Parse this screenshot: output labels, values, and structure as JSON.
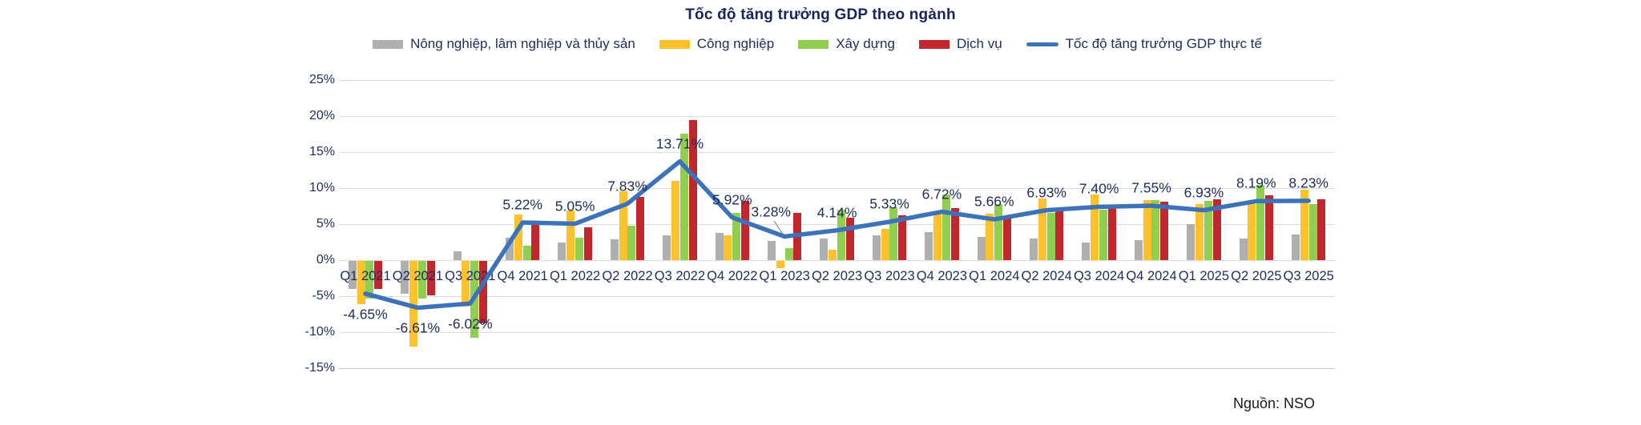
{
  "title": "Tốc độ tăng trưởng GDP theo ngành",
  "source_note": "Nguồn: NSO",
  "colors": {
    "agriculture": "#AFAFAF",
    "industry": "#FDC12C",
    "construction": "#8FCE4F",
    "services": "#C1272D",
    "gdp_line": "#3C72B9",
    "text_navy": "#1F2B5B",
    "grid": "#DCDCDC"
  },
  "chart_data": {
    "type": "bar",
    "subtype": "grouped-bars-with-line",
    "title": "Tốc độ tăng trưởng GDP theo ngành",
    "xlabel": "",
    "ylabel": "",
    "ylim": [
      -15,
      25
    ],
    "grid": true,
    "legend_position": "top",
    "categories": [
      "Q1 2021",
      "Q2 2021",
      "Q3 2021",
      "Q4 2021",
      "Q1 2022",
      "Q2 2022",
      "Q3 2022",
      "Q4 2022",
      "Q1 2023",
      "Q2 2023",
      "Q3 2023",
      "Q4 2023",
      "Q1 2024",
      "Q2 2024",
      "Q3 2024",
      "Q4 2024",
      "Q1 2025",
      "Q2 2025",
      "Q3 2025"
    ],
    "y_axis": {
      "ticks": [
        "25%",
        "20%",
        "15%",
        "10%",
        "5%",
        "0%",
        "-5%",
        "-10%",
        "-15%"
      ],
      "tick_values": [
        25,
        20,
        15,
        10,
        5,
        0,
        -5,
        -10,
        -15
      ]
    },
    "series": [
      {
        "name": "Nông nghiệp, lâm nghiệp và thủy sản",
        "kind": "bar",
        "color": "#AFAFAF",
        "values": [
          -3.9,
          -4.6,
          1.2,
          3.1,
          2.4,
          2.9,
          3.5,
          3.8,
          2.7,
          3.0,
          3.5,
          3.9,
          3.2,
          3.0,
          2.4,
          2.8,
          5.0,
          3.0,
          3.6
        ]
      },
      {
        "name": "Công nghiệp",
        "kind": "bar",
        "color": "#FDC12C",
        "values": [
          -6.0,
          -11.9,
          -6.3,
          6.3,
          6.9,
          9.6,
          11.0,
          3.4,
          -1.0,
          1.4,
          4.3,
          6.5,
          6.4,
          8.6,
          9.1,
          8.3,
          7.8,
          8.2,
          9.8
        ]
      },
      {
        "name": "Xây dựng",
        "kind": "bar",
        "color": "#8FCE4F",
        "values": [
          -5.2,
          -5.2,
          -10.7,
          2.0,
          3.1,
          4.8,
          17.6,
          6.6,
          1.7,
          7.0,
          7.3,
          9.1,
          7.8,
          6.6,
          7.0,
          8.3,
          8.2,
          10.4,
          7.8
        ]
      },
      {
        "name": "Dịch vụ",
        "kind": "bar",
        "color": "#C1272D",
        "values": [
          -3.9,
          -4.8,
          -8.7,
          5.3,
          4.6,
          8.8,
          19.4,
          8.2,
          6.6,
          5.9,
          6.2,
          7.2,
          5.8,
          6.8,
          7.2,
          8.1,
          8.5,
          9.0,
          8.4
        ]
      },
      {
        "name": "Tốc độ tăng trưởng GDP thực tế",
        "kind": "line",
        "color": "#3C72B9",
        "values": [
          -4.65,
          -6.61,
          -6.02,
          5.22,
          5.05,
          7.83,
          13.71,
          5.92,
          3.28,
          4.14,
          5.33,
          6.72,
          5.66,
          6.93,
          7.4,
          7.55,
          6.93,
          8.19,
          8.23
        ],
        "point_labels": [
          "-4.65%",
          "-6.61%",
          "-6.02%",
          "5.22%",
          "5.05%",
          "7.83%",
          "13.71%",
          "5.92%",
          "3.28%",
          "4.14%",
          "5.33%",
          "6.72%",
          "5.66%",
          "6.93%",
          "7.40%",
          "7.55%",
          "6.93%",
          "8.19%",
          "8.23%"
        ],
        "label_overrides": {
          "8": {
            "dx": -17,
            "dy": -8,
            "leader": true
          }
        }
      }
    ]
  }
}
